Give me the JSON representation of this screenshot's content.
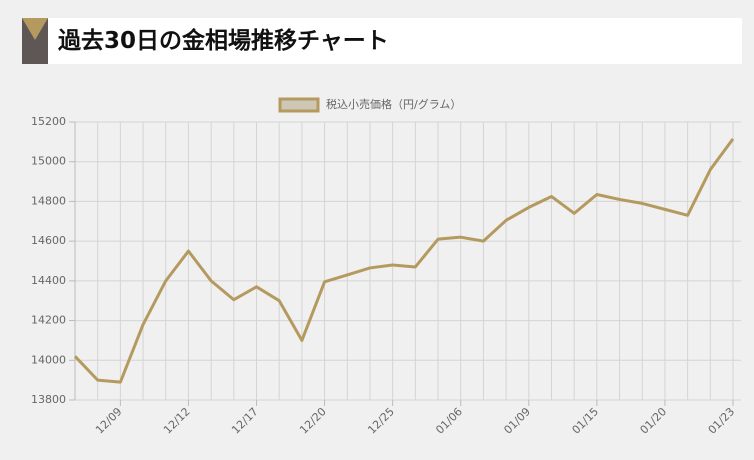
{
  "header": {
    "title": "過去30日の金相場推移チャート"
  },
  "chart_data": {
    "type": "line",
    "categories": [
      null,
      null,
      "12/09",
      null,
      null,
      "12/12",
      null,
      null,
      "12/17",
      null,
      null,
      "12/20",
      null,
      null,
      "12/25",
      null,
      null,
      "01/06",
      null,
      null,
      "01/09",
      null,
      null,
      "01/15",
      null,
      null,
      "01/20",
      null,
      null,
      "01/23"
    ],
    "series": [
      {
        "name": "税込小売価格（円/グラム）",
        "color": "#b59a5f",
        "values": [
          14020,
          13900,
          13890,
          14180,
          14400,
          14550,
          14400,
          14305,
          14370,
          14300,
          14100,
          14395,
          14430,
          14465,
          14480,
          14470,
          14610,
          14620,
          14600,
          14705,
          14770,
          14825,
          14740,
          14835,
          14810,
          14790,
          14760,
          14730,
          14960,
          15115
        ]
      }
    ],
    "ylim": [
      13800,
      15200
    ],
    "yticks": [
      13800,
      14000,
      14200,
      14400,
      14600,
      14800,
      15000,
      15200
    ],
    "grid": true
  }
}
